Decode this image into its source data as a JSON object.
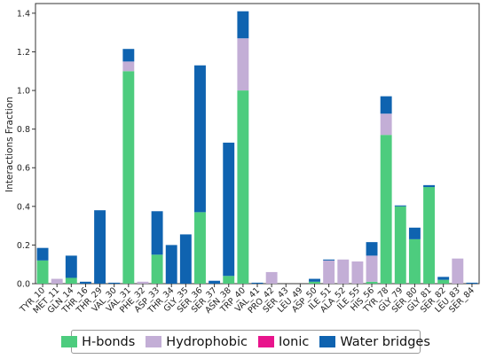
{
  "chart_data": {
    "type": "bar",
    "stacked": true,
    "ylabel": "Interactions Fraction",
    "xlabel": "",
    "ylim": [
      0,
      1.45
    ],
    "yticks": [
      0.0,
      0.2,
      0.4,
      0.6,
      0.8,
      1.0,
      1.2,
      1.4
    ],
    "grid": false,
    "legend_position": "bottom",
    "categories": [
      "TYR_10",
      "MET_11",
      "GLN_14",
      "THR_16",
      "THR_29",
      "VAL_30",
      "VAL_31",
      "PHE_32",
      "ASP_33",
      "THR_34",
      "GLY_35",
      "SER_36",
      "SER_37",
      "ASN_38",
      "TRP_40",
      "VAL_41",
      "PRO_42",
      "SER_43",
      "LEU_49",
      "ASP_50",
      "ILE_51",
      "ALA_52",
      "ILE_55",
      "HIS_56",
      "TYR_78",
      "GLY_79",
      "SER_80",
      "GLY_81",
      "SER_82",
      "LEU_83",
      "SER_84"
    ],
    "series": [
      {
        "name": "H-bonds",
        "color": "#4dcc7e",
        "values": [
          0.12,
          0.0,
          0.03,
          0.0,
          0.0,
          0.0,
          1.1,
          0.0,
          0.15,
          0.0,
          0.0,
          0.37,
          0.0,
          0.04,
          1.0,
          0.0,
          0.0,
          0.0,
          0.0,
          0.01,
          0.0,
          0.0,
          0.0,
          0.01,
          0.77,
          0.4,
          0.23,
          0.5,
          0.02,
          0.0,
          0.0
        ]
      },
      {
        "name": "Hydrophobic",
        "color": "#c3aed6",
        "values": [
          0.0,
          0.025,
          0.0,
          0.0,
          0.0,
          0.0,
          0.05,
          0.01,
          0.0,
          0.0,
          0.0,
          0.0,
          0.0,
          0.0,
          0.27,
          0.0,
          0.06,
          0.0,
          0.0,
          0.0,
          0.12,
          0.125,
          0.115,
          0.135,
          0.11,
          0.0,
          0.0,
          0.0,
          0.0,
          0.13,
          0.0
        ]
      },
      {
        "name": "Ionic",
        "color": "#e8148c",
        "values": [
          0,
          0,
          0,
          0,
          0,
          0,
          0,
          0,
          0,
          0,
          0,
          0,
          0,
          0,
          0,
          0,
          0,
          0,
          0,
          0,
          0,
          0,
          0,
          0,
          0,
          0,
          0,
          0,
          0,
          0,
          0
        ]
      },
      {
        "name": "Water bridges",
        "color": "#0f63b0",
        "values": [
          0.065,
          0.0,
          0.115,
          0.01,
          0.38,
          0.005,
          0.065,
          0.0,
          0.225,
          0.2,
          0.255,
          0.76,
          0.015,
          0.69,
          0.14,
          0.005,
          0.0,
          0.0,
          0.0,
          0.015,
          0.005,
          0.0,
          0.0,
          0.07,
          0.09,
          0.005,
          0.06,
          0.01,
          0.015,
          0.0,
          0.005
        ]
      }
    ]
  },
  "legend": {
    "items": [
      {
        "label": "H-bonds",
        "color": "#4dcc7e"
      },
      {
        "label": "Hydrophobic",
        "color": "#c3aed6"
      },
      {
        "label": "Ionic",
        "color": "#e8148c"
      },
      {
        "label": "Water bridges",
        "color": "#0f63b0"
      }
    ]
  }
}
